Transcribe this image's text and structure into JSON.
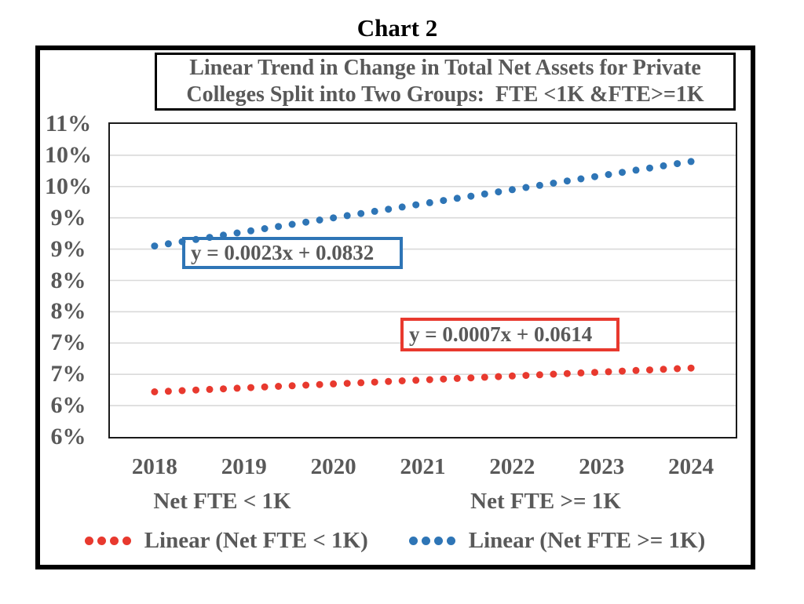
{
  "title": "Chart 2",
  "subtitle": {
    "line1": "Linear Trend in Change in Total Net Assets for Private",
    "line2": "Colleges Split into Two Groups:  FTE <1K &FTE>=1K"
  },
  "group_labels": {
    "left": "Net FTE < 1K",
    "right": "Net FTE >= 1K"
  },
  "legend": [
    {
      "label": "Linear (Net FTE < 1K)",
      "color": "#E8392E"
    },
    {
      "label": "Linear (Net FTE >= 1K)",
      "color": "#2E75B6"
    }
  ],
  "colors": {
    "blue": "#2E75B6",
    "red": "#E8392E",
    "gridline": "#D9D9D9",
    "axis_text": "#595959",
    "frame": "#000000"
  },
  "chart_data": {
    "type": "scatter",
    "title": "Chart 2",
    "subtitle": "Linear Trend in Change in Total Net Assets for Private Colleges Split into Two Groups:  FTE <1K &FTE>=1K",
    "x_ticks": [
      "2018",
      "2019",
      "2020",
      "2021",
      "2022",
      "2023",
      "2024"
    ],
    "y_tick_labels": [
      "11%",
      "10%",
      "10%",
      "9%",
      "9%",
      "8%",
      "8%",
      "7%",
      "7%",
      "6%",
      "6%"
    ],
    "y_tick_values_pct": [
      11,
      10.5,
      10,
      9.5,
      9,
      8.5,
      8,
      7.5,
      7,
      6.5,
      6
    ],
    "y_range_pct": [
      6,
      11
    ],
    "grid": "horizontal",
    "legend_position": "bottom",
    "series": [
      {
        "name": "Linear (Net FTE >= 1K)",
        "style": "dotted-trendline",
        "color": "#2E75B6",
        "equation": "y = 0.0023x + 0.0832",
        "x_start": 2018,
        "x_end": 2024,
        "y_start_pct": 9.05,
        "y_end_pct": 10.4,
        "n_points": 40
      },
      {
        "name": "Linear (Net FTE < 1K)",
        "style": "dotted-trendline",
        "color": "#E8392E",
        "equation": "y = 0.0007x + 0.0614",
        "x_start": 2018,
        "x_end": 2024,
        "y_start_pct": 6.72,
        "y_end_pct": 7.1,
        "n_points": 40
      }
    ]
  }
}
